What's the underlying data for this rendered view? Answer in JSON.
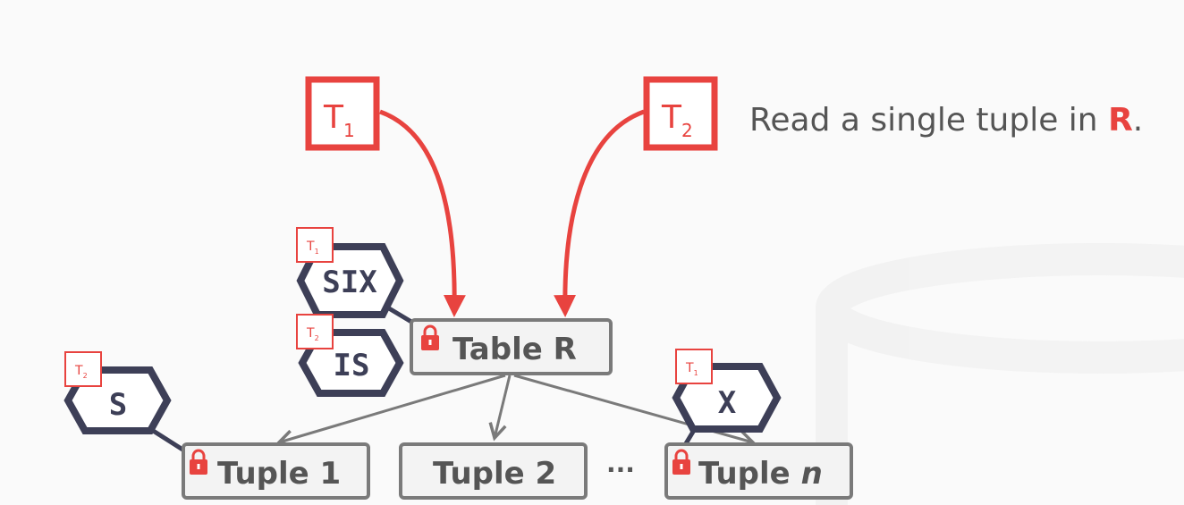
{
  "caption": {
    "text": "Read a single tuple in ",
    "highlight": "R",
    "tail": "."
  },
  "transactions": [
    {
      "letter": "T",
      "sub": "1"
    },
    {
      "letter": "T",
      "sub": "2"
    }
  ],
  "nodes": {
    "table": "Table R",
    "tuple1": "Tuple 1",
    "tuple2": "Tuple 2",
    "ellipsis": "···",
    "tupleN_prefix": "Tuple ",
    "tupleN_var": "n"
  },
  "locks": {
    "six": {
      "mode": "SIX",
      "owner_letter": "T",
      "owner_sub": "1"
    },
    "is": {
      "mode": "IS",
      "owner_letter": "T",
      "owner_sub": "2"
    },
    "s": {
      "mode": "S",
      "owner_letter": "T",
      "owner_sub": "2"
    },
    "x": {
      "mode": "X",
      "owner_letter": "T",
      "owner_sub": "1"
    }
  },
  "colors": {
    "accent_red": "#e8433f",
    "lock_navy": "#3d3f57",
    "box_gray": "#7a7a7a",
    "text_gray": "#555555",
    "background": "#fafafa"
  }
}
